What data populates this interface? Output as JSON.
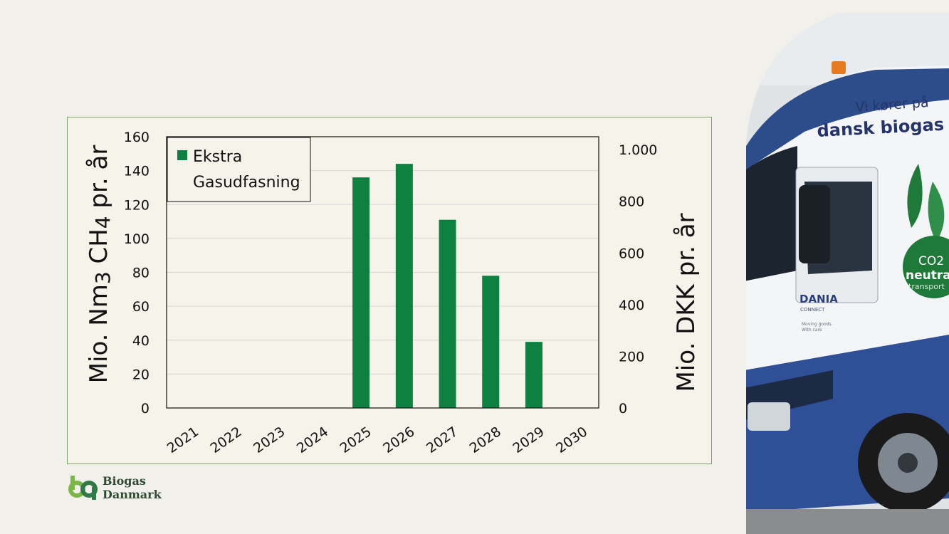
{
  "chart_data": {
    "type": "bar",
    "categories": [
      "2021",
      "2022",
      "2023",
      "2024",
      "2025",
      "2026",
      "2027",
      "2028",
      "2029",
      "2030"
    ],
    "series": [
      {
        "name": "Ekstra Gasudfasning",
        "values": [
          0,
          0,
          0,
          0,
          136,
          144,
          111,
          78,
          39,
          0
        ]
      }
    ],
    "legend_lines": [
      "Ekstra",
      "Gasudfasning"
    ],
    "ylabel": "Mio. Nm3 CH4 pr. år",
    "ylabel_parts": {
      "prefix": "Mio. Nm",
      "three": "3",
      "ch": " CH",
      "four": "4",
      "suffix": " pr. år"
    },
    "y2label": "Mio. DKK pr. år",
    "ylim": [
      0,
      160
    ],
    "yticks": [
      "0",
      "20",
      "40",
      "60",
      "80",
      "100",
      "120",
      "140",
      "160"
    ],
    "y2lim": [
      0,
      1050
    ],
    "y2ticks": [
      {
        "value": 0,
        "label": "0"
      },
      {
        "value": 200,
        "label": "200"
      },
      {
        "value": 400,
        "label": "400"
      },
      {
        "value": 600,
        "label": "600"
      },
      {
        "value": 800,
        "label": "800"
      },
      {
        "value": 1000,
        "label": "1.000"
      }
    ],
    "grid": true,
    "legend_position": "top-left",
    "bar_color": "#0e8040"
  },
  "logo": {
    "line1": "Biogas",
    "line2": "Danmark"
  },
  "truck": {
    "slogan_line1": "Vi kører på",
    "slogan_line2": "dansk biogas",
    "badge_line1": "CO2",
    "badge_line2": "neutral",
    "badge_line3": "transport",
    "brand": "DANIA",
    "brand_sub": "CONNECT",
    "tagline_line1": "Moving goods.",
    "tagline_line2": "With care"
  }
}
